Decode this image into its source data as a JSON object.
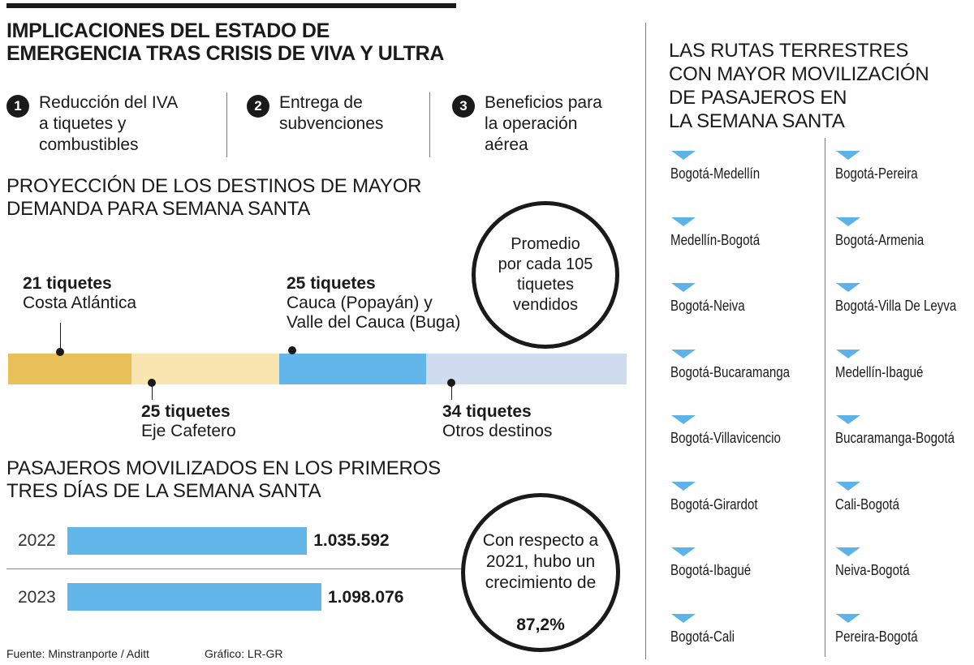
{
  "main_title": "IMPLICACIONES DEL ESTADO DE\nEMERGENCIA TRAS CRISIS DE VIVA  Y ULTRA",
  "implications": [
    {
      "num": "1",
      "text": "Reducción del IVA\na tiquetes y\ncombustibles"
    },
    {
      "num": "2",
      "text": "Entrega de\nsubvenciones"
    },
    {
      "num": "3",
      "text": "Beneficios para\nla operación\naérea"
    }
  ],
  "chart_data": [
    {
      "type": "bar",
      "title": "PROYECCIÓN DE LOS DESTINOS DE MAYOR DEMANDA PARA SEMANA SANTA",
      "note": "Promedio\npor cada 105\ntiquetes\nvendidos",
      "segments": [
        {
          "value": 21,
          "value_label": "21 tiquetes",
          "name": "Costa Atlántica",
          "color": "#e8c05a"
        },
        {
          "value": 25,
          "value_label": "25 tiquetes",
          "name": "Eje Cafetero",
          "color": "#fae5b0"
        },
        {
          "value": 25,
          "value_label": "25 tiquetes",
          "name": "Cauca  (Popayán) y\nValle del Cauca (Buga)",
          "color": "#62b6ea"
        },
        {
          "value": 34,
          "value_label": "34 tiquetes",
          "name": "Otros destinos",
          "color": "#cfdcf0"
        }
      ]
    },
    {
      "type": "bar",
      "title": "PASAJEROS MOVILIZADOS EN LOS PRIMEROS\nTRES DÍAS DE LA SEMANA SANTA",
      "categories": [
        "2022",
        "2023"
      ],
      "values": [
        1035592,
        1098076
      ],
      "value_labels": [
        "1.035.592",
        "1.098.076"
      ],
      "bar_color": "#62b6ea",
      "note_text": "Con respecto a\n2021, hubo un\ncrecimiento de",
      "note_value": "87,2%"
    }
  ],
  "routes": {
    "title": "LAS RUTAS TERRESTRES\nCON MAYOR MOVILIZACIÓN\nDE PASAJEROS EN\nLA SEMANA SANTA",
    "left": [
      "Bogotá-Medellín",
      "Medellín-Bogotá",
      "Bogotá-Neiva",
      "Bogotá-Bucaramanga",
      "Bogotá-Villavicencio",
      "Bogotá-Girardot",
      "Bogotá-Ibagué",
      "Bogotá-Cali"
    ],
    "right": [
      "Bogotá-Pereira",
      "Bogotá-Armenia",
      "Bogotá-Villa De Leyva",
      "Medellín-Ibagué",
      "Bucaramanga-Bogotá",
      "Cali-Bogotá",
      "Neiva-Bogotá",
      "Pereira-Bogotá"
    ],
    "marker_color": "#5db3e8"
  },
  "footer": {
    "source": "Fuente: Minstranporte / Aditt",
    "credit": "Gráfico: LR-GR"
  }
}
